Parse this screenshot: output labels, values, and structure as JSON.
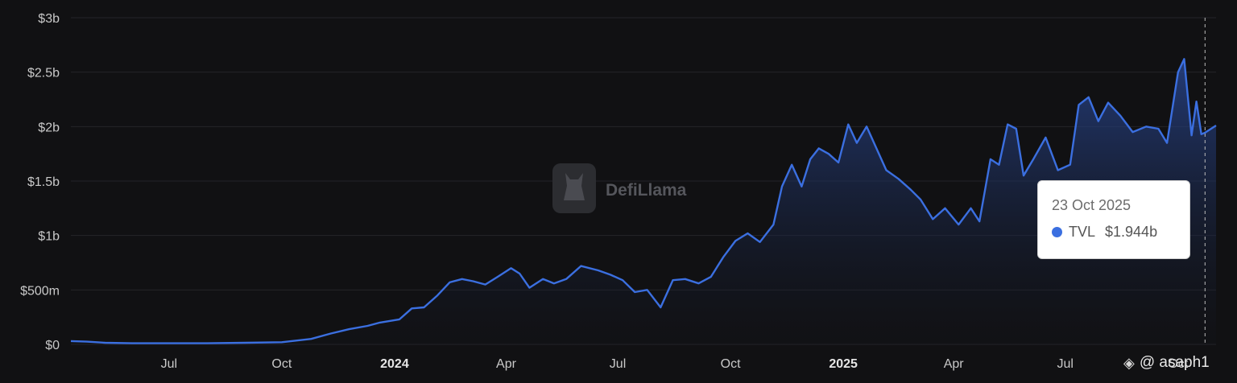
{
  "brand": {
    "watermark": "DefiLlama",
    "logo_icon": "defillama-llama-icon"
  },
  "tooltip": {
    "date": "23 Oct 2025",
    "series": "TVL",
    "value": "$1.944b"
  },
  "credit": {
    "icon": "binance-diamond-icon",
    "handle": "@ asaph1"
  },
  "colors": {
    "line": "#3b6fe0",
    "area_top": "#2a4a9a",
    "area_bottom": "#12151f",
    "background": "#111113"
  },
  "chart_data": {
    "type": "area",
    "title": "",
    "xlabel": "",
    "ylabel": "",
    "ylim": [
      0,
      3000000000
    ],
    "yticks": [
      {
        "value": 0,
        "label": "$0"
      },
      {
        "value": 500000000,
        "label": "$500m"
      },
      {
        "value": 1000000000,
        "label": "$1b"
      },
      {
        "value": 1500000000,
        "label": "$1.5b"
      },
      {
        "value": 2000000000,
        "label": "$2b"
      },
      {
        "value": 2500000000,
        "label": "$2.5b"
      },
      {
        "value": 3000000000,
        "label": "$3b"
      }
    ],
    "xlim": [
      "2023-04-12",
      "2025-11-01"
    ],
    "xticks": [
      {
        "date": "2023-07-01",
        "label": "Jul",
        "bold": false
      },
      {
        "date": "2023-10-01",
        "label": "Oct",
        "bold": false
      },
      {
        "date": "2024-01-01",
        "label": "2024",
        "bold": true
      },
      {
        "date": "2024-04-01",
        "label": "Apr",
        "bold": false
      },
      {
        "date": "2024-07-01",
        "label": "Jul",
        "bold": false
      },
      {
        "date": "2024-10-01",
        "label": "Oct",
        "bold": false
      },
      {
        "date": "2025-01-01",
        "label": "2025",
        "bold": true
      },
      {
        "date": "2025-04-01",
        "label": "Apr",
        "bold": false
      },
      {
        "date": "2025-07-01",
        "label": "Jul",
        "bold": false
      },
      {
        "date": "2025-10-01",
        "label": "Oct",
        "bold": false
      }
    ],
    "hover_date": "2025-10-23",
    "grid": true,
    "legend": "tooltip",
    "series": [
      {
        "name": "TVL",
        "unit": "USD",
        "points": [
          [
            "2023-04-12",
            30000000
          ],
          [
            "2023-04-25",
            25000000
          ],
          [
            "2023-05-10",
            15000000
          ],
          [
            "2023-06-01",
            10000000
          ],
          [
            "2023-07-01",
            10000000
          ],
          [
            "2023-08-01",
            10000000
          ],
          [
            "2023-09-01",
            15000000
          ],
          [
            "2023-10-01",
            20000000
          ],
          [
            "2023-10-25",
            50000000
          ],
          [
            "2023-11-10",
            100000000
          ],
          [
            "2023-11-25",
            140000000
          ],
          [
            "2023-12-10",
            170000000
          ],
          [
            "2023-12-20",
            200000000
          ],
          [
            "2024-01-05",
            230000000
          ],
          [
            "2024-01-15",
            330000000
          ],
          [
            "2024-01-25",
            340000000
          ],
          [
            "2024-02-05",
            450000000
          ],
          [
            "2024-02-15",
            570000000
          ],
          [
            "2024-02-25",
            600000000
          ],
          [
            "2024-03-05",
            580000000
          ],
          [
            "2024-03-15",
            550000000
          ],
          [
            "2024-03-25",
            620000000
          ],
          [
            "2024-04-05",
            700000000
          ],
          [
            "2024-04-12",
            650000000
          ],
          [
            "2024-04-20",
            520000000
          ],
          [
            "2024-05-01",
            600000000
          ],
          [
            "2024-05-10",
            560000000
          ],
          [
            "2024-05-20",
            600000000
          ],
          [
            "2024-06-01",
            720000000
          ],
          [
            "2024-06-15",
            680000000
          ],
          [
            "2024-06-25",
            640000000
          ],
          [
            "2024-07-05",
            590000000
          ],
          [
            "2024-07-15",
            480000000
          ],
          [
            "2024-07-25",
            500000000
          ],
          [
            "2024-08-05",
            340000000
          ],
          [
            "2024-08-15",
            590000000
          ],
          [
            "2024-08-25",
            600000000
          ],
          [
            "2024-09-05",
            560000000
          ],
          [
            "2024-09-15",
            620000000
          ],
          [
            "2024-09-25",
            800000000
          ],
          [
            "2024-10-05",
            950000000
          ],
          [
            "2024-10-15",
            1020000000
          ],
          [
            "2024-10-25",
            940000000
          ],
          [
            "2024-11-05",
            1100000000
          ],
          [
            "2024-11-12",
            1450000000
          ],
          [
            "2024-11-20",
            1650000000
          ],
          [
            "2024-11-28",
            1450000000
          ],
          [
            "2024-12-05",
            1700000000
          ],
          [
            "2024-12-12",
            1800000000
          ],
          [
            "2024-12-20",
            1750000000
          ],
          [
            "2024-12-28",
            1670000000
          ],
          [
            "2025-01-05",
            2020000000
          ],
          [
            "2025-01-12",
            1850000000
          ],
          [
            "2025-01-20",
            2000000000
          ],
          [
            "2025-01-28",
            1800000000
          ],
          [
            "2025-02-05",
            1600000000
          ],
          [
            "2025-02-15",
            1520000000
          ],
          [
            "2025-02-25",
            1420000000
          ],
          [
            "2025-03-05",
            1330000000
          ],
          [
            "2025-03-15",
            1150000000
          ],
          [
            "2025-03-25",
            1250000000
          ],
          [
            "2025-04-05",
            1100000000
          ],
          [
            "2025-04-15",
            1250000000
          ],
          [
            "2025-04-22",
            1130000000
          ],
          [
            "2025-05-01",
            1700000000
          ],
          [
            "2025-05-08",
            1650000000
          ],
          [
            "2025-05-15",
            2020000000
          ],
          [
            "2025-05-22",
            1980000000
          ],
          [
            "2025-05-28",
            1550000000
          ],
          [
            "2025-06-05",
            1700000000
          ],
          [
            "2025-06-15",
            1900000000
          ],
          [
            "2025-06-25",
            1600000000
          ],
          [
            "2025-07-05",
            1650000000
          ],
          [
            "2025-07-12",
            2200000000
          ],
          [
            "2025-07-20",
            2270000000
          ],
          [
            "2025-07-28",
            2050000000
          ],
          [
            "2025-08-05",
            2220000000
          ],
          [
            "2025-08-15",
            2100000000
          ],
          [
            "2025-08-25",
            1950000000
          ],
          [
            "2025-09-05",
            2000000000
          ],
          [
            "2025-09-15",
            1980000000
          ],
          [
            "2025-09-22",
            1850000000
          ],
          [
            "2025-10-01",
            2500000000
          ],
          [
            "2025-10-06",
            2620000000
          ],
          [
            "2025-10-12",
            1920000000
          ],
          [
            "2025-10-16",
            2230000000
          ],
          [
            "2025-10-20",
            1930000000
          ],
          [
            "2025-10-23",
            1944000000
          ],
          [
            "2025-11-01",
            2010000000
          ]
        ]
      }
    ]
  }
}
